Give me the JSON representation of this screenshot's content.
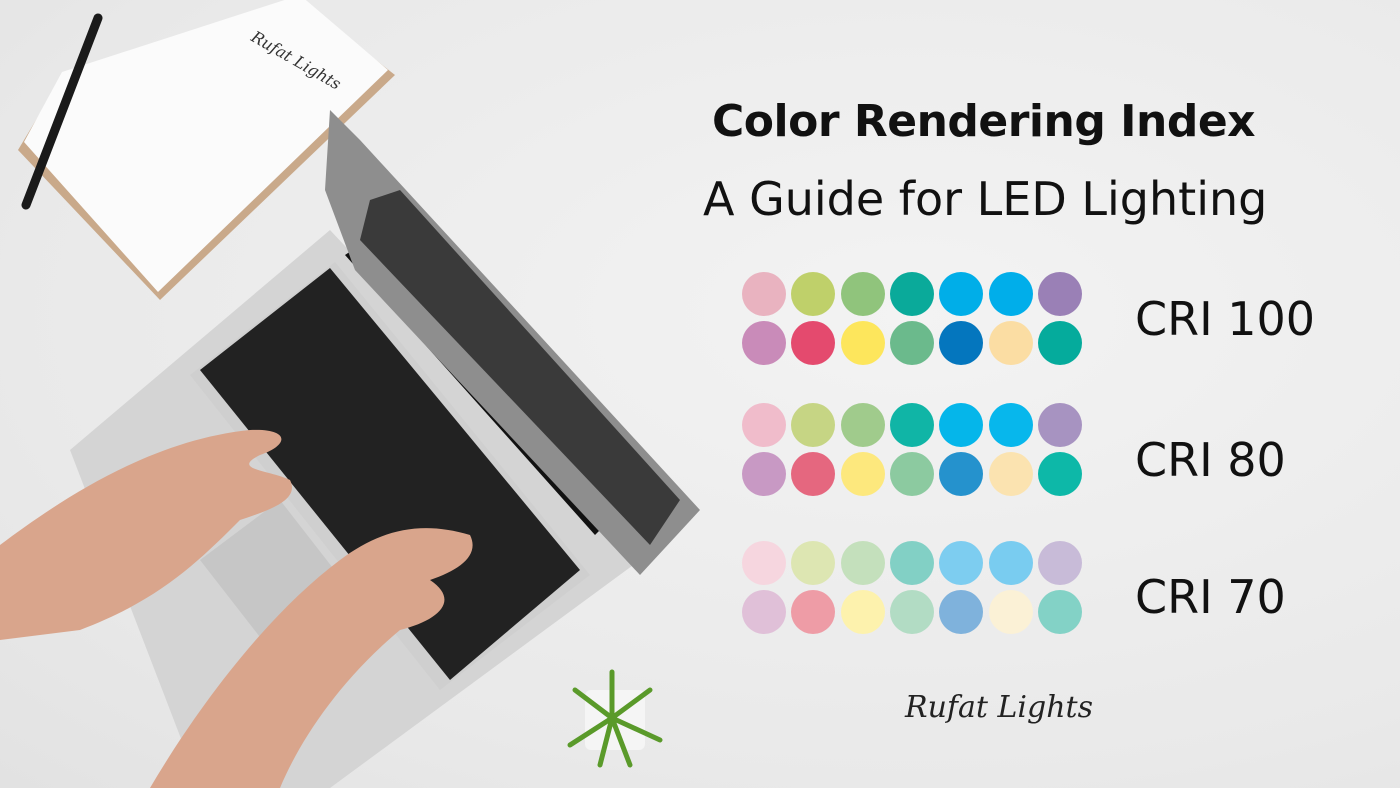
{
  "header": {
    "title": "Color Rendering Index",
    "subtitle": "A Guide for LED Lighting"
  },
  "swatch_groups": [
    {
      "label": "CRI 100",
      "colors": [
        [
          "#e9b3c0",
          "#bfd06a",
          "#90c47c",
          "#0aaa9a",
          "#00aee8",
          "#00aeea",
          "#9a80b6"
        ],
        [
          "#c98bb9",
          "#e44a6e",
          "#fde65c",
          "#6bba8c",
          "#0476be",
          "#fbdda3",
          "#05ab9c"
        ]
      ]
    },
    {
      "label": "CRI 80",
      "colors": [
        [
          "#f0bccb",
          "#c6d584",
          "#a0cb8c",
          "#10b5a6",
          "#05b6ea",
          "#07b7ec",
          "#a793c1"
        ],
        [
          "#c899c4",
          "#e5677f",
          "#fde87d",
          "#8ccaa0",
          "#2592cd",
          "#fbe3b0",
          "#0db8a8"
        ]
      ]
    },
    {
      "label": "CRI 70",
      "colors": [
        [
          "#f6d6df",
          "#dde6b2",
          "#c4e0bc",
          "#82d0c5",
          "#7dcdf0",
          "#79ccf0",
          "#c8bbd8"
        ],
        [
          "#e0c0d8",
          "#ee9ca6",
          "#fdf2ad",
          "#b2dcc4",
          "#7fb2dc",
          "#fbf1d6",
          "#83d2c6"
        ]
      ]
    }
  ],
  "brand": {
    "logo_text": "Rufat Lights",
    "notebook_text": "Rufat Lights"
  }
}
